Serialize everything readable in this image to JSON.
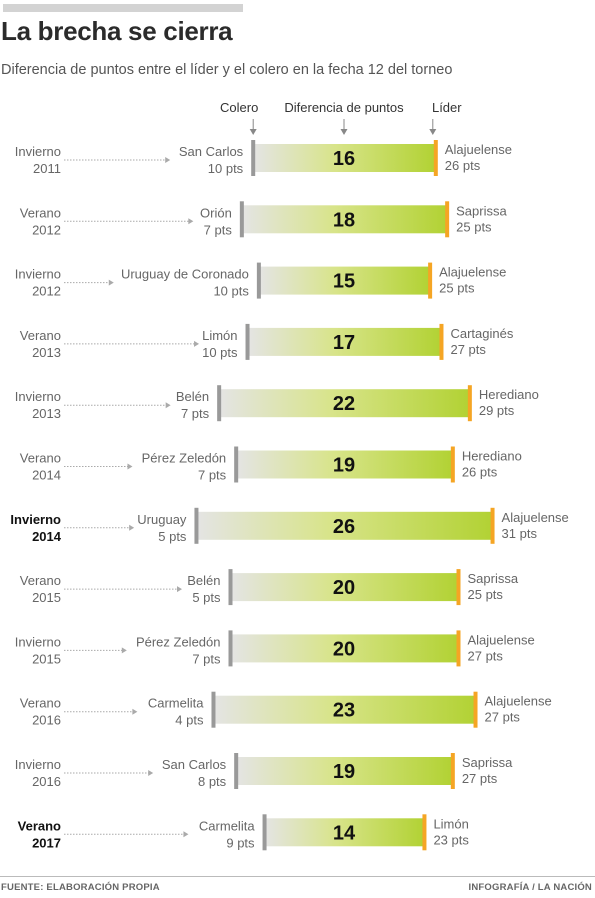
{
  "title": "La brecha se cierra",
  "subtitle": "Diferencia de puntos entre el líder y el colero en la fecha 12 del torneo",
  "footer": {
    "source": "FUENTE: ELABORACIÓN PROPIA",
    "credit": "INFOGRAFÍA /  LA NACIÓN"
  },
  "chart_data": {
    "type": "bar",
    "title": "La brecha se cierra",
    "headers": {
      "colero": "Colero",
      "diferencia": "Diferencia de puntos",
      "lider": "Líder"
    },
    "pts_suffix": "pts",
    "xlim": [
      0,
      32
    ],
    "colors": {
      "bar_start": "#e4e4e4",
      "bar_end": "#b2d234",
      "lider_mark": "#f5a524",
      "colero_mark": "#999999",
      "highlight": "#111111"
    },
    "rows": [
      {
        "season": "Invierno",
        "year": "2011",
        "colero": "San Carlos",
        "colero_pts": 10,
        "lider": "Alajuelense",
        "lider_pts": 26,
        "diff": 16,
        "highlight": false
      },
      {
        "season": "Verano",
        "year": "2012",
        "colero": "Orión",
        "colero_pts": 7,
        "lider": "Saprissa",
        "lider_pts": 25,
        "diff": 18,
        "highlight": false
      },
      {
        "season": "Invierno",
        "year": "2012",
        "colero": "Uruguay de Coronado",
        "colero_pts": 10,
        "lider": "Alajuelense",
        "lider_pts": 25,
        "diff": 15,
        "highlight": false
      },
      {
        "season": "Verano",
        "year": "2013",
        "colero": "Limón",
        "colero_pts": 10,
        "lider": "Cartaginés",
        "lider_pts": 27,
        "diff": 17,
        "highlight": false
      },
      {
        "season": "Invierno",
        "year": "2013",
        "colero": "Belén",
        "colero_pts": 7,
        "lider": "Herediano",
        "lider_pts": 29,
        "diff": 22,
        "highlight": false
      },
      {
        "season": "Verano",
        "year": "2014",
        "colero": "Pérez Zeledón",
        "colero_pts": 7,
        "lider": "Herediano",
        "lider_pts": 26,
        "diff": 19,
        "highlight": false
      },
      {
        "season": "Invierno",
        "year": "2014",
        "colero": "Uruguay",
        "colero_pts": 5,
        "lider": "Alajuelense",
        "lider_pts": 31,
        "diff": 26,
        "highlight": true
      },
      {
        "season": "Verano",
        "year": "2015",
        "colero": "Belén",
        "colero_pts": 5,
        "lider": "Saprissa",
        "lider_pts": 25,
        "diff": 20,
        "highlight": false
      },
      {
        "season": "Invierno",
        "year": "2015",
        "colero": "Pérez Zeledón",
        "colero_pts": 7,
        "lider": "Alajuelense",
        "lider_pts": 27,
        "diff": 20,
        "highlight": false
      },
      {
        "season": "Verano",
        "year": "2016",
        "colero": "Carmelita",
        "colero_pts": 4,
        "lider": "Alajuelense",
        "lider_pts": 27,
        "diff": 23,
        "highlight": false
      },
      {
        "season": "Invierno",
        "year": "2016",
        "colero": "San Carlos",
        "colero_pts": 8,
        "lider": "Saprissa",
        "lider_pts": 27,
        "diff": 19,
        "highlight": false
      },
      {
        "season": "Verano",
        "year": "2017",
        "colero": "Carmelita",
        "colero_pts": 9,
        "lider": "Limón",
        "lider_pts": 23,
        "diff": 14,
        "highlight": true
      }
    ]
  }
}
